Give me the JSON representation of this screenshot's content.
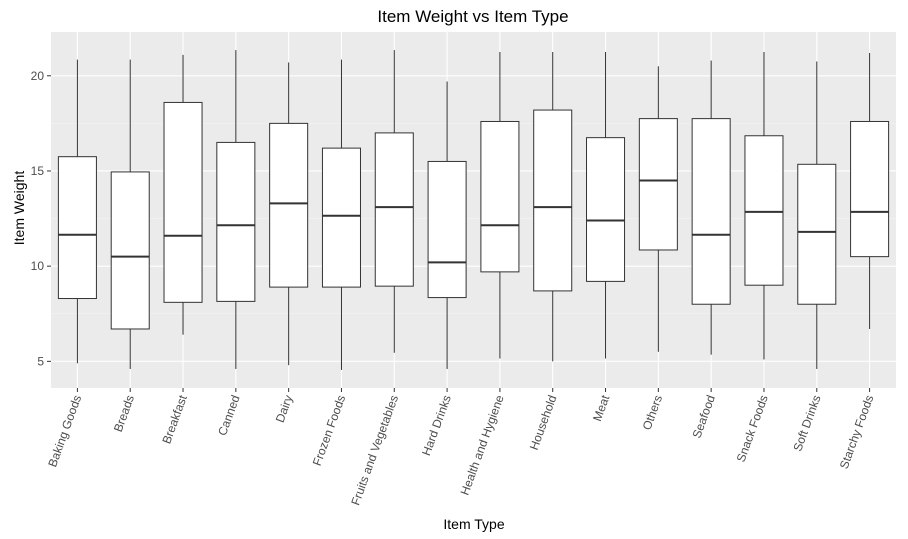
{
  "chart_data": {
    "type": "box",
    "title": "Item Weight vs Item Type",
    "xlabel": "Item Type",
    "ylabel": "Item Weight",
    "ylim": [
      3.6,
      22.3
    ],
    "yticks": [
      5,
      10,
      15,
      20
    ],
    "grid": true,
    "legend": "none",
    "colors": {
      "panel": "#ebebeb",
      "grid_major": "#ffffff",
      "box_fill": "#ffffff",
      "box_stroke": "#333333"
    },
    "categories": [
      "Baking Goods",
      "Breads",
      "Breakfast",
      "Canned",
      "Dairy",
      "Frozen Foods",
      "Fruits and Vegetables",
      "Hard Drinks",
      "Health and Hygiene",
      "Household",
      "Meat",
      "Others",
      "Seafood",
      "Snack Foods",
      "Soft Drinks",
      "Starchy Foods"
    ],
    "boxes": [
      {
        "category": "Baking Goods",
        "min": 4.9,
        "q1": 8.3,
        "median": 11.65,
        "q3": 15.75,
        "max": 20.85
      },
      {
        "category": "Breads",
        "min": 4.6,
        "q1": 6.7,
        "median": 10.5,
        "q3": 14.95,
        "max": 20.85
      },
      {
        "category": "Breakfast",
        "min": 6.4,
        "q1": 8.1,
        "median": 11.6,
        "q3": 18.6,
        "max": 21.1
      },
      {
        "category": "Canned",
        "min": 4.6,
        "q1": 8.15,
        "median": 12.15,
        "q3": 16.5,
        "max": 21.35
      },
      {
        "category": "Dairy",
        "min": 4.8,
        "q1": 8.9,
        "median": 13.3,
        "q3": 17.5,
        "max": 20.7
      },
      {
        "category": "Frozen Foods",
        "min": 4.55,
        "q1": 8.9,
        "median": 12.65,
        "q3": 16.2,
        "max": 20.85
      },
      {
        "category": "Fruits and Vegetables",
        "min": 5.45,
        "q1": 8.95,
        "median": 13.1,
        "q3": 17.0,
        "max": 21.35
      },
      {
        "category": "Hard Drinks",
        "min": 4.6,
        "q1": 8.35,
        "median": 10.2,
        "q3": 15.5,
        "max": 19.7
      },
      {
        "category": "Health and Hygiene",
        "min": 5.15,
        "q1": 9.7,
        "median": 12.15,
        "q3": 17.6,
        "max": 21.25
      },
      {
        "category": "Household",
        "min": 5.0,
        "q1": 8.7,
        "median": 13.1,
        "q3": 18.2,
        "max": 21.25
      },
      {
        "category": "Meat",
        "min": 5.15,
        "q1": 9.2,
        "median": 12.4,
        "q3": 16.75,
        "max": 21.25
      },
      {
        "category": "Others",
        "min": 5.5,
        "q1": 10.85,
        "median": 14.5,
        "q3": 17.75,
        "max": 20.5
      },
      {
        "category": "Seafood",
        "min": 5.35,
        "q1": 8.0,
        "median": 11.65,
        "q3": 17.75,
        "max": 20.8
      },
      {
        "category": "Snack Foods",
        "min": 5.1,
        "q1": 9.0,
        "median": 12.85,
        "q3": 16.85,
        "max": 21.25
      },
      {
        "category": "Soft Drinks",
        "min": 4.6,
        "q1": 8.0,
        "median": 11.8,
        "q3": 15.35,
        "max": 20.75
      },
      {
        "category": "Starchy Foods",
        "min": 6.7,
        "q1": 10.5,
        "median": 12.85,
        "q3": 17.6,
        "max": 21.2
      }
    ]
  }
}
